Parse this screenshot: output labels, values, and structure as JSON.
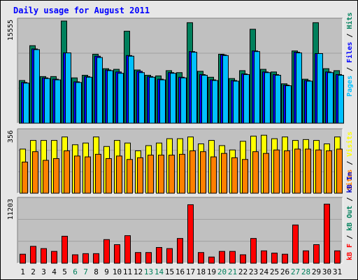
{
  "chart_data": {
    "type": "bar",
    "title": "Daily usage for August 2011",
    "colors": {
      "hits": "#00805c",
      "files": "#0000ff",
      "pages": "#00c0ff",
      "visits": "#ffff00",
      "sites": "#ff8000",
      "kbin": "#0000c0",
      "kbout": "#ff0000",
      "title": "#0000ff",
      "panel": "#c0c0c0",
      "weekend": "#00805c",
      "weekday": "#000000"
    },
    "days": [
      "1",
      "2",
      "3",
      "4",
      "5",
      "6",
      "7",
      "8",
      "9",
      "10",
      "11",
      "12",
      "13",
      "14",
      "15",
      "16",
      "17",
      "18",
      "19",
      "20",
      "21",
      "22",
      "23",
      "24",
      "25",
      "26",
      "27",
      "28",
      "29",
      "30",
      "31"
    ],
    "weekend_days": [
      6,
      7,
      13,
      14,
      20,
      21,
      27,
      28
    ],
    "panels": [
      {
        "id": "hits-files-pages",
        "ymax_label": "15555",
        "ymax": 15555,
        "legend": [
          {
            "text": "Pages",
            "color": "#00c0ff"
          },
          {
            "text": " / ",
            "color": "#000000"
          },
          {
            "text": "Files",
            "color": "#0000ff"
          },
          {
            "text": " / ",
            "color": "#000000"
          },
          {
            "text": "Hits",
            "color": "#00805c"
          }
        ],
        "series": [
          {
            "name": "Hits",
            "values": [
              6500,
              11800,
              7100,
              7100,
              15550,
              6900,
              7300,
              10500,
              8300,
              8200,
              14000,
              8100,
              7300,
              7200,
              8000,
              7700,
              15300,
              7900,
              7000,
              10500,
              6800,
              8000,
              14300,
              8200,
              7800,
              6000,
              11000,
              6700,
              15300,
              8300,
              8000
            ]
          },
          {
            "name": "Files",
            "values": [
              6200,
              11300,
              6900,
              6700,
              10700,
              6300,
              7100,
              10200,
              8100,
              7800,
              10300,
              7900,
              7100,
              6700,
              7700,
              7000,
              10900,
              7400,
              6600,
              10400,
              6500,
              7500,
              11000,
              7800,
              7400,
              5800,
              10800,
              6500,
              10600,
              7800,
              7400
            ]
          },
          {
            "name": "Pages",
            "values": [
              6100,
              11200,
              6800,
              6600,
              10700,
              6200,
              7000,
              10000,
              8000,
              7600,
              10200,
              7700,
              7000,
              6600,
              7600,
              6900,
              10800,
              7300,
              6500,
              10300,
              6400,
              7400,
              10900,
              7700,
              7300,
              5700,
              10700,
              6400,
              10600,
              7700,
              7300
            ]
          }
        ]
      },
      {
        "id": "visits-sites",
        "ymax_label": "356",
        "ymax": 356,
        "legend": [
          {
            "text": "Sites",
            "color": "#ff8000"
          },
          {
            "text": " / ",
            "color": "#000000"
          },
          {
            "text": "Visits",
            "color": "#ffff00"
          }
        ],
        "series": [
          {
            "name": "Visits",
            "values": [
              255,
              305,
              305,
              305,
              325,
              280,
              290,
              325,
              270,
              305,
              290,
              245,
              275,
              290,
              315,
              315,
              325,
              285,
              305,
              275,
              250,
              300,
              330,
              335,
              315,
              325,
              305,
              310,
              305,
              285,
              325
            ]
          },
          {
            "name": "Sites",
            "values": [
              180,
              240,
              190,
              200,
              245,
              215,
              210,
              225,
              200,
              215,
              195,
              205,
              220,
              220,
              220,
              225,
              245,
              240,
              210,
              230,
              205,
              195,
              240,
              230,
              250,
              245,
              255,
              255,
              250,
              245,
              255
            ]
          }
        ]
      },
      {
        "id": "kbin-kbout",
        "ymax_label": "11203",
        "ymax": 11203,
        "legend": [
          {
            "text": "kB F",
            "color": "#ff0000"
          },
          {
            "text": " / ",
            "color": "#000000"
          },
          {
            "text": "kB Out",
            "color": "#00805c"
          },
          {
            "text": " / ",
            "color": "#000000"
          },
          {
            "text": "kB In",
            "color": "#0000c0"
          }
        ],
        "series": [
          {
            "name": "kB F",
            "values": [
              1600,
              3000,
              2600,
              2100,
              4800,
              1500,
              1700,
              1700,
              4200,
              3300,
              4900,
              1900,
              1900,
              2800,
              2600,
              4400,
              10400,
              1900,
              1100,
              2100,
              2100,
              1500,
              4400,
              2200,
              1800,
              1600,
              6800,
              2200,
              3300,
              10500,
              2200
            ]
          }
        ]
      }
    ]
  }
}
